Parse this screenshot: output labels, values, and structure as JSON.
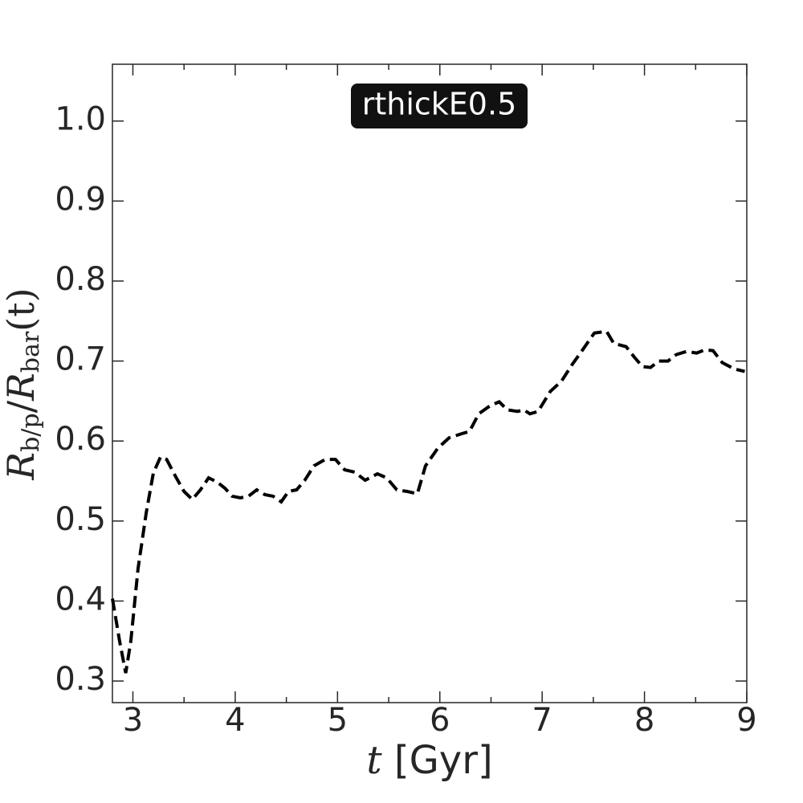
{
  "chart_data": {
    "type": "line",
    "annotation": "rthickE0.5",
    "xlabel": [
      "t",
      " [Gyr]"
    ],
    "ylabel": [
      "R",
      "b/p",
      "/",
      "R",
      "bar",
      "(t)"
    ],
    "xlim": [
      2.8,
      9
    ],
    "ylim": [
      0.273,
      1.071
    ],
    "xticks": [
      3,
      4,
      5,
      6,
      7,
      8,
      9
    ],
    "xminorticks": [
      3.5,
      4.5,
      5.5,
      6.5,
      7.5,
      8.5
    ],
    "yticks": [
      0.3,
      0.4,
      0.5,
      0.6,
      0.7,
      0.8,
      0.9,
      {
        "value": 1.0,
        "label": "1.0"
      }
    ],
    "series": [
      {
        "color": "#000000",
        "x": [
          2.8,
          2.87,
          2.93,
          2.98,
          3.05,
          3.13,
          3.2,
          3.27,
          3.33,
          3.42,
          3.5,
          3.58,
          3.66,
          3.74,
          3.82,
          3.9,
          3.97,
          4.05,
          4.13,
          4.21,
          4.29,
          4.37,
          4.45,
          4.52,
          4.6,
          4.68,
          4.77,
          4.88,
          4.98,
          5.07,
          5.17,
          5.27,
          5.39,
          5.48,
          5.58,
          5.68,
          5.78,
          5.86,
          5.98,
          6.09,
          6.21,
          6.29,
          6.38,
          6.49,
          6.58,
          6.66,
          6.76,
          6.82,
          6.88,
          6.96,
          7.08,
          7.19,
          7.29,
          7.39,
          7.51,
          7.63,
          7.7,
          7.82,
          7.9,
          7.98,
          8.06,
          8.14,
          8.23,
          8.31,
          8.41,
          8.51,
          8.59,
          8.67,
          8.76,
          8.88,
          8.98
        ],
        "values": [
          0.403,
          0.35,
          0.31,
          0.35,
          0.44,
          0.51,
          0.56,
          0.58,
          0.577,
          0.555,
          0.537,
          0.527,
          0.539,
          0.554,
          0.549,
          0.541,
          0.531,
          0.529,
          0.531,
          0.539,
          0.533,
          0.531,
          0.524,
          0.537,
          0.539,
          0.551,
          0.569,
          0.577,
          0.577,
          0.564,
          0.561,
          0.551,
          0.559,
          0.554,
          0.539,
          0.537,
          0.534,
          0.569,
          0.591,
          0.604,
          0.609,
          0.612,
          0.634,
          0.644,
          0.649,
          0.639,
          0.637,
          0.639,
          0.634,
          0.637,
          0.662,
          0.675,
          0.695,
          0.713,
          0.735,
          0.737,
          0.722,
          0.718,
          0.705,
          0.693,
          0.692,
          0.7,
          0.7,
          0.708,
          0.712,
          0.71,
          0.714,
          0.713,
          0.698,
          0.69,
          0.687
        ]
      }
    ]
  }
}
